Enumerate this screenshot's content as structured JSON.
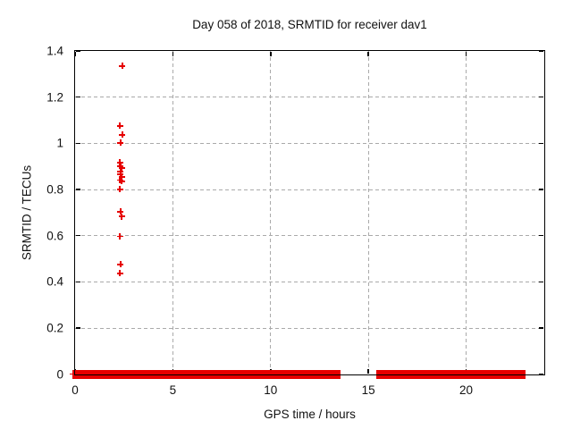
{
  "colors": {
    "marker_red": "#e60000",
    "grid_gray": "#aaaaaa",
    "axis_black": "#000000",
    "background": "#ffffff"
  },
  "chart_data": {
    "type": "scatter",
    "title": "Day 058 of 2018, SRMTID for receiver dav1",
    "xlabel": "GPS time / hours",
    "ylabel": "SRMTID / TECUs",
    "xlim": [
      0,
      24
    ],
    "ylim": [
      0,
      1.4
    ],
    "xtick_values": [
      0,
      5,
      10,
      15,
      20
    ],
    "xtick_labels": [
      "0",
      "5",
      "10",
      "15",
      "20"
    ],
    "ytick_values": [
      0,
      0.2,
      0.4,
      0.6,
      0.8,
      1.0,
      1.2,
      1.4
    ],
    "ytick_labels": [
      "0",
      "0.2",
      "0.4",
      "0.6",
      "0.8",
      "1",
      "1.2",
      "1.4"
    ],
    "grid": true,
    "legend_position": "none",
    "marker": "plus",
    "points": [
      [
        2.42,
        1.335
      ],
      [
        2.29,
        1.075
      ],
      [
        2.42,
        1.037
      ],
      [
        2.33,
        1.002
      ],
      [
        2.29,
        0.917
      ],
      [
        2.33,
        0.901
      ],
      [
        2.38,
        0.892
      ],
      [
        2.33,
        0.878
      ],
      [
        2.33,
        0.866
      ],
      [
        2.38,
        0.855
      ],
      [
        2.29,
        0.84
      ],
      [
        2.38,
        0.835
      ],
      [
        2.29,
        0.801
      ],
      [
        2.33,
        0.704
      ],
      [
        2.38,
        0.683
      ],
      [
        2.29,
        0.597
      ],
      [
        2.33,
        0.476
      ],
      [
        2.29,
        0.437
      ]
    ],
    "baseline_y": 0,
    "baseline_segments_hours": [
      [
        0.0,
        2.28
      ],
      [
        2.46,
        13.44
      ],
      [
        15.56,
        22.16
      ],
      [
        22.46,
        22.92
      ]
    ]
  }
}
